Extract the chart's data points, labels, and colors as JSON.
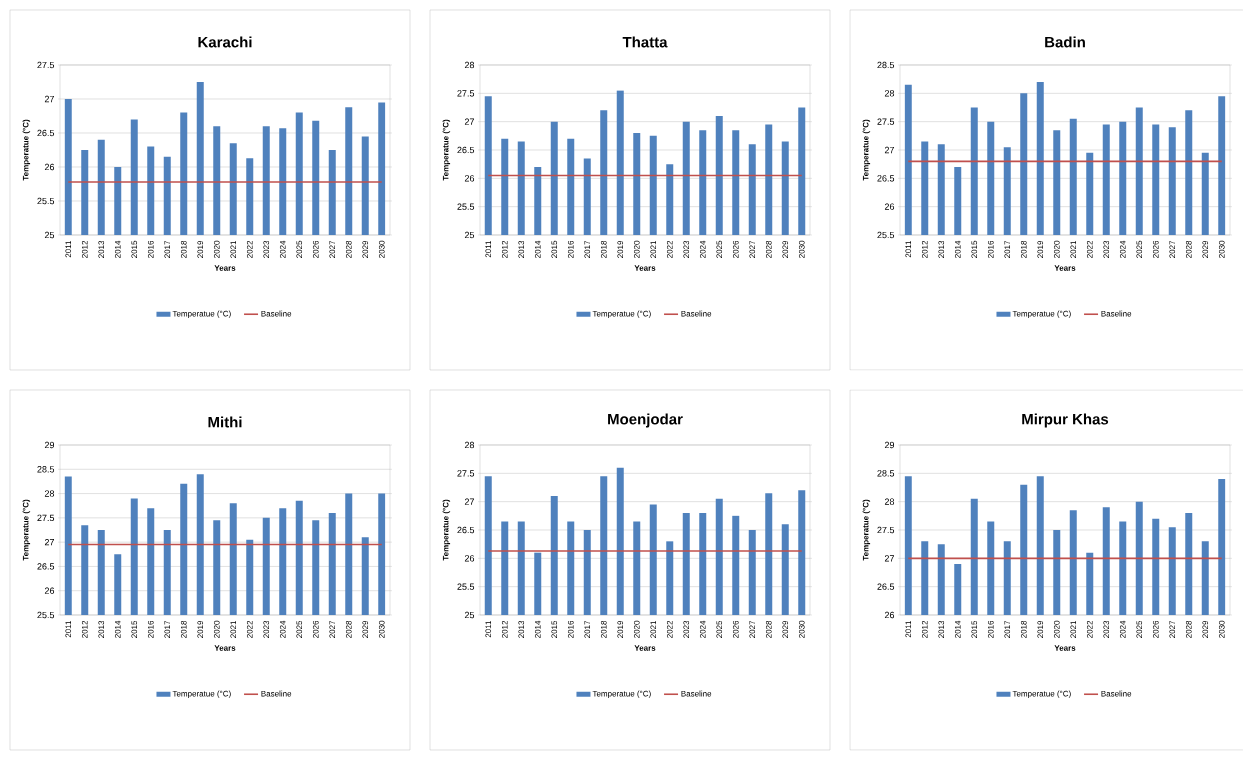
{
  "chart_data": [
    {
      "type": "bar",
      "title": "Karachi",
      "xlabel": "Years",
      "ylabel": "Temperatue (°C)",
      "categories": [
        "2011",
        "2012",
        "2013",
        "2014",
        "2015",
        "2016",
        "2017",
        "2018",
        "2019",
        "2020",
        "2021",
        "2022",
        "2023",
        "2024",
        "2025",
        "2026",
        "2027",
        "2028",
        "2029",
        "2030"
      ],
      "series": [
        {
          "name": "Temperatue (°C)",
          "color": "#4f81bd",
          "values": [
            27.0,
            26.25,
            26.4,
            26.0,
            26.7,
            26.3,
            26.15,
            26.8,
            27.25,
            26.6,
            26.35,
            26.13,
            26.6,
            26.57,
            26.8,
            26.68,
            26.25,
            26.88,
            26.45,
            26.95
          ]
        },
        {
          "name": "Baseline",
          "type": "line",
          "color": "#c0504d",
          "values": [
            25.78,
            25.78,
            25.78,
            25.78,
            25.78,
            25.78,
            25.78,
            25.78,
            25.78,
            25.78,
            25.78,
            25.78,
            25.78,
            25.78,
            25.78,
            25.78,
            25.78,
            25.78,
            25.78,
            25.78
          ]
        }
      ],
      "ylim": [
        25,
        27.5
      ],
      "yticks": [
        25,
        25.5,
        26,
        26.5,
        27,
        27.5
      ],
      "grid": "y",
      "legend": "bottom"
    },
    {
      "type": "bar",
      "title": "Thatta",
      "xlabel": "Years",
      "ylabel": "Temperatue (°C)",
      "categories": [
        "2011",
        "2012",
        "2013",
        "2014",
        "2015",
        "2016",
        "2017",
        "2018",
        "2019",
        "2020",
        "2021",
        "2022",
        "2023",
        "2024",
        "2025",
        "2026",
        "2027",
        "2028",
        "2029",
        "2030"
      ],
      "series": [
        {
          "name": "Temperatue (°C)",
          "color": "#4f81bd",
          "values": [
            27.45,
            26.7,
            26.65,
            26.2,
            27.0,
            26.7,
            26.35,
            27.2,
            27.55,
            26.8,
            26.75,
            26.25,
            27.0,
            26.85,
            27.1,
            26.85,
            26.6,
            26.95,
            26.65,
            27.25
          ]
        },
        {
          "name": "Baseline",
          "type": "line",
          "color": "#c0504d",
          "values": [
            26.05,
            26.05,
            26.05,
            26.05,
            26.05,
            26.05,
            26.05,
            26.05,
            26.05,
            26.05,
            26.05,
            26.05,
            26.05,
            26.05,
            26.05,
            26.05,
            26.05,
            26.05,
            26.05,
            26.05
          ]
        }
      ],
      "ylim": [
        25,
        28
      ],
      "yticks": [
        25,
        25.5,
        26,
        26.5,
        27,
        27.5,
        28
      ],
      "grid": "y",
      "legend": "bottom"
    },
    {
      "type": "bar",
      "title": "Badin",
      "xlabel": "Years",
      "ylabel": "Temperatue (°C)",
      "categories": [
        "2011",
        "2012",
        "2013",
        "2014",
        "2015",
        "2016",
        "2017",
        "2018",
        "2019",
        "2020",
        "2021",
        "2022",
        "2023",
        "2024",
        "2025",
        "2026",
        "2027",
        "2028",
        "2029",
        "2030"
      ],
      "series": [
        {
          "name": "Temperatue (°C)",
          "color": "#4f81bd",
          "values": [
            28.15,
            27.15,
            27.1,
            26.7,
            27.75,
            27.5,
            27.05,
            28.0,
            28.2,
            27.35,
            27.55,
            26.95,
            27.45,
            27.5,
            27.75,
            27.45,
            27.4,
            27.7,
            26.95,
            27.95
          ]
        },
        {
          "name": "Baseline",
          "type": "line",
          "color": "#c0504d",
          "values": [
            26.8,
            26.8,
            26.8,
            26.8,
            26.8,
            26.8,
            26.8,
            26.8,
            26.8,
            26.8,
            26.8,
            26.8,
            26.8,
            26.8,
            26.8,
            26.8,
            26.8,
            26.8,
            26.8,
            26.8
          ]
        }
      ],
      "ylim": [
        25.5,
        28.5
      ],
      "yticks": [
        25.5,
        26,
        26.5,
        27,
        27.5,
        28,
        28.5
      ],
      "grid": "y",
      "legend": "bottom"
    },
    {
      "type": "bar",
      "title": "Mithi",
      "xlabel": "Years",
      "ylabel": "Temperatue (°C)",
      "categories": [
        "2011",
        "2012",
        "2013",
        "2014",
        "2015",
        "2016",
        "2017",
        "2018",
        "2019",
        "2020",
        "2021",
        "2022",
        "2023",
        "2024",
        "2025",
        "2026",
        "2027",
        "2028",
        "2029",
        "2030"
      ],
      "series": [
        {
          "name": "Temperatue (°C)",
          "color": "#4f81bd",
          "values": [
            28.35,
            27.35,
            27.25,
            26.75,
            27.9,
            27.7,
            27.25,
            28.2,
            28.4,
            27.45,
            27.8,
            27.05,
            27.5,
            27.7,
            27.85,
            27.45,
            27.6,
            28.0,
            27.1,
            28.0
          ]
        },
        {
          "name": "Baseline",
          "type": "line",
          "color": "#c0504d",
          "values": [
            26.95,
            26.95,
            26.95,
            26.95,
            26.95,
            26.95,
            26.95,
            26.95,
            26.95,
            26.95,
            26.95,
            26.95,
            26.95,
            26.95,
            26.95,
            26.95,
            26.95,
            26.95,
            26.95,
            26.95
          ]
        }
      ],
      "ylim": [
        25.5,
        29
      ],
      "yticks": [
        25.5,
        26,
        26.5,
        27,
        27.5,
        28,
        28.5,
        29
      ],
      "grid": "y",
      "legend": "bottom"
    },
    {
      "type": "bar",
      "title": "Moenjodar",
      "xlabel": "Years",
      "ylabel": "Temperatue (°C)",
      "categories": [
        "2011",
        "2012",
        "2013",
        "2014",
        "2015",
        "2016",
        "2017",
        "2018",
        "2019",
        "2020",
        "2021",
        "2022",
        "2023",
        "2024",
        "2025",
        "2026",
        "2027",
        "2028",
        "2029",
        "2030"
      ],
      "series": [
        {
          "name": "Temperatue (°C)",
          "color": "#4f81bd",
          "values": [
            27.45,
            26.65,
            26.65,
            26.1,
            27.1,
            26.65,
            26.5,
            27.45,
            27.6,
            26.65,
            26.95,
            26.3,
            26.8,
            26.8,
            27.05,
            26.75,
            26.5,
            27.15,
            26.6,
            27.2
          ]
        },
        {
          "name": "Baseline",
          "type": "line",
          "color": "#c0504d",
          "values": [
            26.13,
            26.13,
            26.13,
            26.13,
            26.13,
            26.13,
            26.13,
            26.13,
            26.13,
            26.13,
            26.13,
            26.13,
            26.13,
            26.13,
            26.13,
            26.13,
            26.13,
            26.13,
            26.13,
            26.13
          ]
        }
      ],
      "ylim": [
        25,
        28
      ],
      "yticks": [
        25,
        25.5,
        26,
        26.5,
        27,
        27.5,
        28
      ],
      "grid": "y",
      "legend": "bottom"
    },
    {
      "type": "bar",
      "title": "Mirpur Khas",
      "xlabel": "Years",
      "ylabel": "Temperatue (°C)",
      "categories": [
        "2011",
        "2012",
        "2013",
        "2014",
        "2015",
        "2016",
        "2017",
        "2018",
        "2019",
        "2020",
        "2021",
        "2022",
        "2023",
        "2024",
        "2025",
        "2026",
        "2027",
        "2028",
        "2029",
        "2030"
      ],
      "series": [
        {
          "name": "Temperatue (°C)",
          "color": "#4f81bd",
          "values": [
            28.45,
            27.3,
            27.25,
            26.9,
            28.05,
            27.65,
            27.3,
            28.3,
            28.45,
            27.5,
            27.85,
            27.1,
            27.9,
            27.65,
            28.0,
            27.7,
            27.55,
            27.8,
            27.3,
            28.4
          ]
        },
        {
          "name": "Baseline",
          "type": "line",
          "color": "#c0504d",
          "values": [
            27.0,
            27.0,
            27.0,
            27.0,
            27.0,
            27.0,
            27.0,
            27.0,
            27.0,
            27.0,
            27.0,
            27.0,
            27.0,
            27.0,
            27.0,
            27.0,
            27.0,
            27.0,
            27.0,
            27.0
          ]
        }
      ],
      "ylim": [
        26,
        29
      ],
      "yticks": [
        26,
        26.5,
        27,
        27.5,
        28,
        28.5,
        29
      ],
      "grid": "y",
      "legend": "bottom"
    }
  ]
}
